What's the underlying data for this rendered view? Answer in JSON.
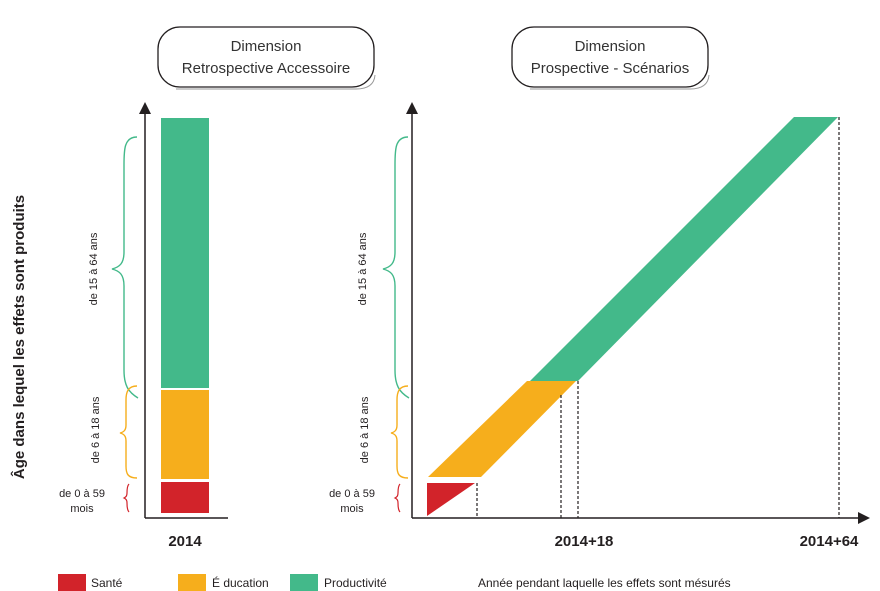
{
  "y_axis_label": "Âge dans lequel les effets sont produits",
  "left_panel": {
    "title_line1": "Dimension",
    "title_line2": "Retrospective Accessoire",
    "x_tick": "2014",
    "age_labels": {
      "age_15_64": "de 15 à 64 ans",
      "age_6_18": "de 6 à 18 ans",
      "age_0_59_line1": "de 0 à 59",
      "age_0_59_line2": "mois"
    }
  },
  "right_panel": {
    "title_line1": "Dimension",
    "title_line2": "Prospective - Scénarios",
    "x_tick_mid": "2014+18",
    "x_tick_end": "2014+64",
    "age_labels": {
      "age_15_64": "de 15 à 64 ans",
      "age_6_18": "de 6 à 18 ans",
      "age_0_59_line1": "de 0 à 59",
      "age_0_59_line2": "mois"
    }
  },
  "legend": [
    {
      "label": "Santé",
      "color": "#d2232a"
    },
    {
      "label": "É ducation",
      "color": "#f6ae1c"
    },
    {
      "label": "Productivité",
      "color": "#43b98a"
    }
  ],
  "x_axis_caption": "Année pendant laquelle les effets sont mésurés",
  "colors": {
    "sante": "#d2232a",
    "education": "#f6ae1c",
    "productivite": "#43b98a",
    "axis": "#231f20"
  }
}
